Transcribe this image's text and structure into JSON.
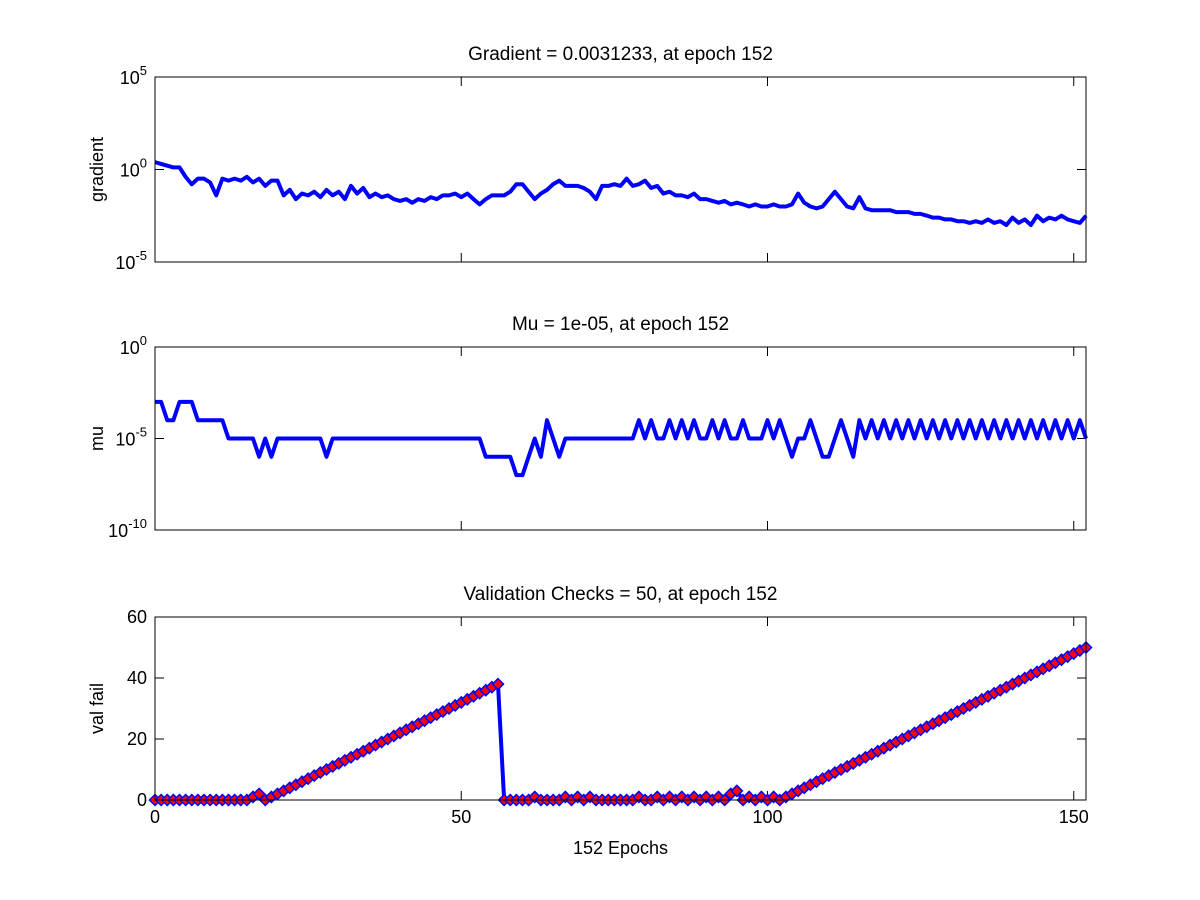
{
  "chart_data": [
    {
      "type": "line",
      "title": "Gradient = 0.0031233, at epoch 152",
      "ylabel": "gradient",
      "ylog": true,
      "color": "#0000ff",
      "xlim": [
        0,
        152
      ],
      "xticks": [
        0,
        50,
        100,
        150
      ],
      "xtick_labels": false,
      "ylim": [
        1e-05,
        100000
      ],
      "yticks": [
        {
          "value": 1e-05,
          "label": "10^-5"
        },
        {
          "value": 1,
          "label": "10^0"
        },
        {
          "value": 100000,
          "label": "10^5"
        }
      ],
      "x": [
        0,
        1,
        2,
        3,
        4,
        5,
        6,
        7,
        8,
        9,
        10,
        11,
        12,
        13,
        14,
        15,
        16,
        17,
        18,
        19,
        20,
        21,
        22,
        23,
        24,
        25,
        26,
        27,
        28,
        29,
        30,
        31,
        32,
        33,
        34,
        35,
        36,
        37,
        38,
        39,
        40,
        41,
        42,
        43,
        44,
        45,
        46,
        47,
        48,
        49,
        50,
        51,
        52,
        53,
        54,
        55,
        56,
        57,
        58,
        59,
        60,
        61,
        62,
        63,
        64,
        65,
        66,
        67,
        68,
        69,
        70,
        71,
        72,
        73,
        74,
        75,
        76,
        77,
        78,
        79,
        80,
        81,
        82,
        83,
        84,
        85,
        86,
        87,
        88,
        89,
        90,
        91,
        92,
        93,
        94,
        95,
        96,
        97,
        98,
        99,
        100,
        101,
        102,
        103,
        104,
        105,
        106,
        107,
        108,
        109,
        110,
        111,
        112,
        113,
        114,
        115,
        116,
        117,
        118,
        119,
        120,
        121,
        122,
        123,
        124,
        125,
        126,
        127,
        128,
        129,
        130,
        131,
        132,
        133,
        134,
        135,
        136,
        137,
        138,
        139,
        140,
        141,
        142,
        143,
        144,
        145,
        146,
        147,
        148,
        149,
        150,
        151,
        152
      ],
      "values": [
        2.5,
        2,
        1.6,
        1.3,
        1.3,
        0.4,
        0.16,
        0.32,
        0.32,
        0.2,
        0.04,
        0.32,
        0.25,
        0.32,
        0.25,
        0.4,
        0.2,
        0.32,
        0.13,
        0.25,
        0.25,
        0.04,
        0.079,
        0.025,
        0.05,
        0.04,
        0.063,
        0.032,
        0.079,
        0.04,
        0.063,
        0.025,
        0.13,
        0.05,
        0.1,
        0.032,
        0.05,
        0.032,
        0.04,
        0.025,
        0.02,
        0.025,
        0.016,
        0.025,
        0.02,
        0.032,
        0.025,
        0.04,
        0.04,
        0.05,
        0.032,
        0.05,
        0.025,
        0.013,
        0.025,
        0.04,
        0.04,
        0.04,
        0.063,
        0.16,
        0.16,
        0.063,
        0.025,
        0.05,
        0.079,
        0.16,
        0.25,
        0.13,
        0.13,
        0.13,
        0.1,
        0.063,
        0.025,
        0.13,
        0.13,
        0.16,
        0.13,
        0.32,
        0.13,
        0.16,
        0.25,
        0.1,
        0.13,
        0.05,
        0.063,
        0.04,
        0.04,
        0.032,
        0.05,
        0.025,
        0.025,
        0.02,
        0.016,
        0.02,
        0.013,
        0.016,
        0.013,
        0.01,
        0.013,
        0.01,
        0.01,
        0.013,
        0.01,
        0.01,
        0.013,
        0.05,
        0.016,
        0.01,
        0.0079,
        0.01,
        0.025,
        0.063,
        0.025,
        0.01,
        0.0079,
        0.032,
        0.0079,
        0.0063,
        0.0063,
        0.0063,
        0.0063,
        0.005,
        0.005,
        0.005,
        0.004,
        0.004,
        0.0032,
        0.0025,
        0.0025,
        0.002,
        0.002,
        0.0016,
        0.0016,
        0.0013,
        0.0016,
        0.0013,
        0.002,
        0.0013,
        0.0016,
        0.001,
        0.0025,
        0.0013,
        0.002,
        0.001,
        0.0032,
        0.0016,
        0.0025,
        0.002,
        0.0032,
        0.002,
        0.0016,
        0.0013,
        0.0031233
      ]
    },
    {
      "type": "line",
      "title": "Mu = 1e-05, at epoch 152",
      "ylabel": "mu",
      "ylog": true,
      "color": "#0000ff",
      "xlim": [
        0,
        152
      ],
      "xticks": [
        0,
        50,
        100,
        150
      ],
      "xtick_labels": false,
      "ylim": [
        1e-10,
        1
      ],
      "yticks": [
        {
          "value": 1e-10,
          "label": "10^-10"
        },
        {
          "value": 1e-05,
          "label": "10^-5"
        },
        {
          "value": 1,
          "label": "10^0"
        }
      ],
      "x": [
        0,
        1,
        2,
        3,
        4,
        5,
        6,
        7,
        8,
        9,
        10,
        11,
        12,
        13,
        14,
        15,
        16,
        17,
        18,
        19,
        20,
        21,
        22,
        23,
        24,
        25,
        26,
        27,
        28,
        29,
        30,
        31,
        32,
        33,
        34,
        35,
        36,
        37,
        38,
        39,
        40,
        41,
        42,
        43,
        44,
        45,
        46,
        47,
        48,
        49,
        50,
        51,
        52,
        53,
        54,
        55,
        56,
        57,
        58,
        59,
        60,
        61,
        62,
        63,
        64,
        65,
        66,
        67,
        68,
        69,
        70,
        71,
        72,
        73,
        74,
        75,
        76,
        77,
        78,
        79,
        80,
        81,
        82,
        83,
        84,
        85,
        86,
        87,
        88,
        89,
        90,
        91,
        92,
        93,
        94,
        95,
        96,
        97,
        98,
        99,
        100,
        101,
        102,
        103,
        104,
        105,
        106,
        107,
        108,
        109,
        110,
        111,
        112,
        113,
        114,
        115,
        116,
        117,
        118,
        119,
        120,
        121,
        122,
        123,
        124,
        125,
        126,
        127,
        128,
        129,
        130,
        131,
        132,
        133,
        134,
        135,
        136,
        137,
        138,
        139,
        140,
        141,
        142,
        143,
        144,
        145,
        146,
        147,
        148,
        149,
        150,
        151,
        152
      ],
      "values": [
        0.001,
        0.001,
        0.0001,
        0.0001,
        0.001,
        0.001,
        0.001,
        0.0001,
        0.0001,
        0.0001,
        0.0001,
        0.0001,
        1e-05,
        1e-05,
        1e-05,
        1e-05,
        1e-05,
        1e-06,
        1e-05,
        1e-06,
        1e-05,
        1e-05,
        1e-05,
        1e-05,
        1e-05,
        1e-05,
        1e-05,
        1e-05,
        1e-06,
        1e-05,
        1e-05,
        1e-05,
        1e-05,
        1e-05,
        1e-05,
        1e-05,
        1e-05,
        1e-05,
        1e-05,
        1e-05,
        1e-05,
        1e-05,
        1e-05,
        1e-05,
        1e-05,
        1e-05,
        1e-05,
        1e-05,
        1e-05,
        1e-05,
        1e-05,
        1e-05,
        1e-05,
        1e-05,
        1e-06,
        1e-06,
        1e-06,
        1e-06,
        1e-06,
        1e-07,
        1e-07,
        1e-06,
        1e-05,
        1e-06,
        0.0001,
        1e-05,
        1e-06,
        1e-05,
        1e-05,
        1e-05,
        1e-05,
        1e-05,
        1e-05,
        1e-05,
        1e-05,
        1e-05,
        1e-05,
        1e-05,
        1e-05,
        0.0001,
        1e-05,
        0.0001,
        1e-05,
        1e-05,
        0.0001,
        1e-05,
        0.0001,
        1e-05,
        0.0001,
        1e-05,
        1e-05,
        0.0001,
        1e-05,
        0.0001,
        1e-05,
        1e-05,
        0.0001,
        1e-05,
        1e-05,
        1e-05,
        0.0001,
        1e-05,
        0.0001,
        1e-05,
        1e-06,
        1e-05,
        1e-05,
        0.0001,
        1e-05,
        1e-06,
        1e-06,
        1e-05,
        0.0001,
        1e-05,
        1e-06,
        0.0001,
        1e-05,
        0.0001,
        1e-05,
        0.0001,
        1e-05,
        0.0001,
        1e-05,
        0.0001,
        1e-05,
        0.0001,
        1e-05,
        0.0001,
        1e-05,
        0.0001,
        1e-05,
        0.0001,
        1e-05,
        0.0001,
        1e-05,
        0.0001,
        1e-05,
        0.0001,
        1e-05,
        0.0001,
        1e-05,
        0.0001,
        1e-05,
        0.0001,
        1e-05,
        0.0001,
        1e-05,
        0.0001,
        1e-05,
        0.0001,
        1e-05,
        0.0001,
        1e-05
      ]
    },
    {
      "type": "line",
      "title": "Validation Checks = 50, at epoch 152",
      "ylabel": "val fail",
      "xlabel": "152 Epochs",
      "ylog": false,
      "color": "#0000ff",
      "marker": "diamond",
      "marker_color": "#ff0000",
      "xlim": [
        0,
        152
      ],
      "xticks": [
        0,
        50,
        100,
        150
      ],
      "xtick_labels": true,
      "ylim": [
        0,
        60
      ],
      "yticks": [
        0,
        20,
        40,
        60
      ],
      "x": [
        0,
        1,
        2,
        3,
        4,
        5,
        6,
        7,
        8,
        9,
        10,
        11,
        12,
        13,
        14,
        15,
        16,
        17,
        18,
        19,
        20,
        21,
        22,
        23,
        24,
        25,
        26,
        27,
        28,
        29,
        30,
        31,
        32,
        33,
        34,
        35,
        36,
        37,
        38,
        39,
        40,
        41,
        42,
        43,
        44,
        45,
        46,
        47,
        48,
        49,
        50,
        51,
        52,
        53,
        54,
        55,
        56,
        57,
        58,
        59,
        60,
        61,
        62,
        63,
        64,
        65,
        66,
        67,
        68,
        69,
        70,
        71,
        72,
        73,
        74,
        75,
        76,
        77,
        78,
        79,
        80,
        81,
        82,
        83,
        84,
        85,
        86,
        87,
        88,
        89,
        90,
        91,
        92,
        93,
        94,
        95,
        96,
        97,
        98,
        99,
        100,
        101,
        102,
        103,
        104,
        105,
        106,
        107,
        108,
        109,
        110,
        111,
        112,
        113,
        114,
        115,
        116,
        117,
        118,
        119,
        120,
        121,
        122,
        123,
        124,
        125,
        126,
        127,
        128,
        129,
        130,
        131,
        132,
        133,
        134,
        135,
        136,
        137,
        138,
        139,
        140,
        141,
        142,
        143,
        144,
        145,
        146,
        147,
        148,
        149,
        150,
        151,
        152
      ],
      "values": [
        0,
        0,
        0,
        0,
        0,
        0,
        0,
        0,
        0,
        0,
        0,
        0,
        0,
        0,
        0,
        0,
        1,
        2,
        0,
        1,
        2,
        3,
        4,
        5,
        6,
        7,
        8,
        9,
        10,
        11,
        12,
        13,
        14,
        15,
        16,
        17,
        18,
        19,
        20,
        21,
        22,
        23,
        24,
        25,
        26,
        27,
        28,
        29,
        30,
        31,
        32,
        33,
        34,
        35,
        36,
        37,
        38,
        0,
        0,
        0,
        0,
        0,
        1,
        0,
        0,
        0,
        0,
        1,
        0,
        1,
        0,
        1,
        0,
        0,
        0,
        0,
        0,
        0,
        0,
        1,
        0,
        0,
        1,
        0,
        1,
        0,
        1,
        0,
        1,
        0,
        1,
        0,
        1,
        0,
        2,
        3,
        0,
        1,
        0,
        1,
        0,
        1,
        0,
        1,
        2,
        3,
        4,
        5,
        6,
        7,
        8,
        9,
        10,
        11,
        12,
        13,
        14,
        15,
        16,
        17,
        18,
        19,
        20,
        21,
        22,
        23,
        24,
        25,
        26,
        27,
        28,
        29,
        30,
        31,
        32,
        33,
        34,
        35,
        36,
        37,
        38,
        39,
        40,
        41,
        42,
        43,
        44,
        45,
        46,
        47,
        48,
        49,
        50
      ]
    }
  ]
}
